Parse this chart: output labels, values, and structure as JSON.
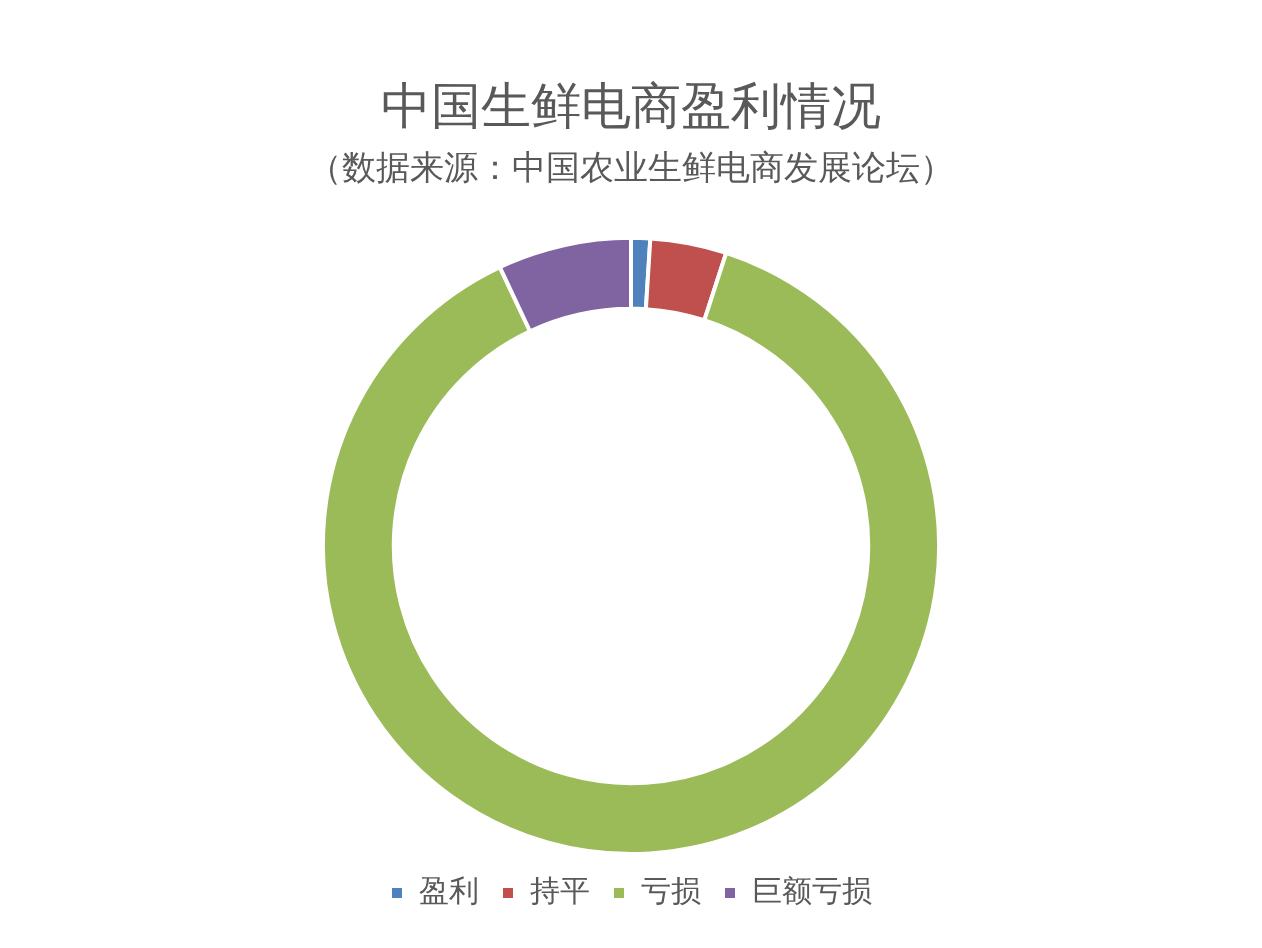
{
  "chart_data": {
    "type": "donut",
    "title": "中国生鲜电商盈利情况",
    "subtitle": "（数据来源：中国农业生鲜电商发展论坛）",
    "categories": [
      "盈利",
      "持平",
      "亏损",
      "巨额亏损"
    ],
    "values": [
      1,
      4,
      88,
      7
    ],
    "colors": [
      "#4f81bd",
      "#c0504d",
      "#9bbb59",
      "#8064a2"
    ],
    "legend": "bottom"
  }
}
